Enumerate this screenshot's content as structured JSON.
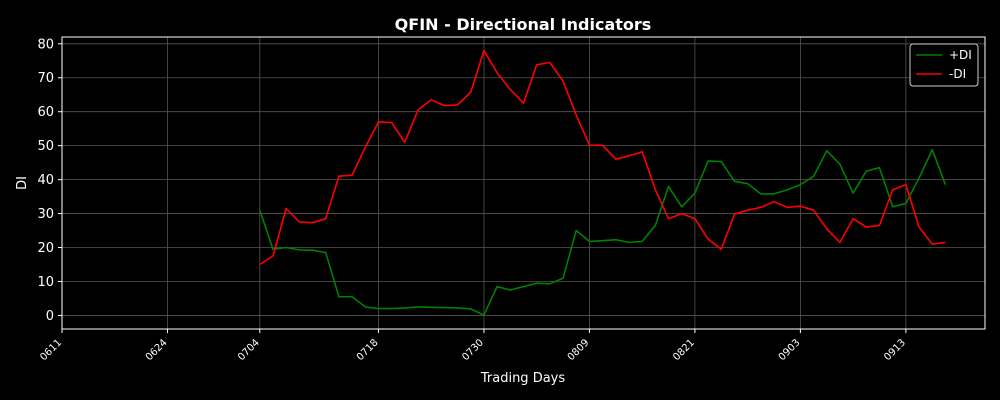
{
  "chart_data": {
    "type": "line",
    "title": "QFIN - Directional Indicators",
    "xlabel": "Trading Days",
    "ylabel": "DI",
    "ylim": [
      -4,
      82
    ],
    "yticks": [
      0,
      10,
      20,
      30,
      40,
      50,
      60,
      70,
      80
    ],
    "xticks": [
      "0611",
      "0624",
      "0704",
      "0718",
      "0730",
      "0809",
      "0821",
      "0903",
      "0913"
    ],
    "xtick_index": [
      0,
      8,
      15,
      24,
      32,
      40,
      48,
      56,
      64
    ],
    "x_range": [
      0,
      70
    ],
    "grid": true,
    "legend_position": "top-right",
    "series": [
      {
        "name": "+DI",
        "color": "#008000",
        "start_index": 15,
        "values": [
          31.0,
          19.5,
          20.0,
          19.3,
          19.2,
          18.5,
          5.5,
          5.5,
          2.5,
          2.0,
          2.0,
          2.2,
          2.5,
          2.4,
          2.3,
          2.2,
          1.9,
          0.1,
          8.5,
          7.5,
          8.5,
          9.5,
          9.3,
          11.0,
          25.0,
          21.8,
          22.0,
          22.3,
          21.5,
          21.8,
          26.5,
          38.0,
          32.0,
          36.0,
          45.5,
          45.3,
          39.5,
          38.8,
          35.8,
          35.8,
          37.0,
          38.5,
          41.0,
          48.5,
          44.5,
          36.0,
          42.5,
          43.5,
          32.0,
          33.0,
          40.5,
          48.8,
          38.5
        ]
      },
      {
        "name": "-DI",
        "color": "#ff0000",
        "start_index": 15,
        "values": [
          15.0,
          17.5,
          31.5,
          27.5,
          27.3,
          28.5,
          41.0,
          41.3,
          49.5,
          57.0,
          56.8,
          51.0,
          60.5,
          63.5,
          61.8,
          62.0,
          65.8,
          78.0,
          71.5,
          66.5,
          62.5,
          73.8,
          74.5,
          69.0,
          59.0,
          50.2,
          50.1,
          46.0,
          47.0,
          48.2,
          37.0,
          28.5,
          30.0,
          28.5,
          22.5,
          19.5,
          29.8,
          31.0,
          31.8,
          33.5,
          31.8,
          32.2,
          31.0,
          25.5,
          21.5,
          28.5,
          26.0,
          26.5,
          37.0,
          38.5,
          26.0,
          21.0,
          21.5
        ]
      }
    ]
  }
}
